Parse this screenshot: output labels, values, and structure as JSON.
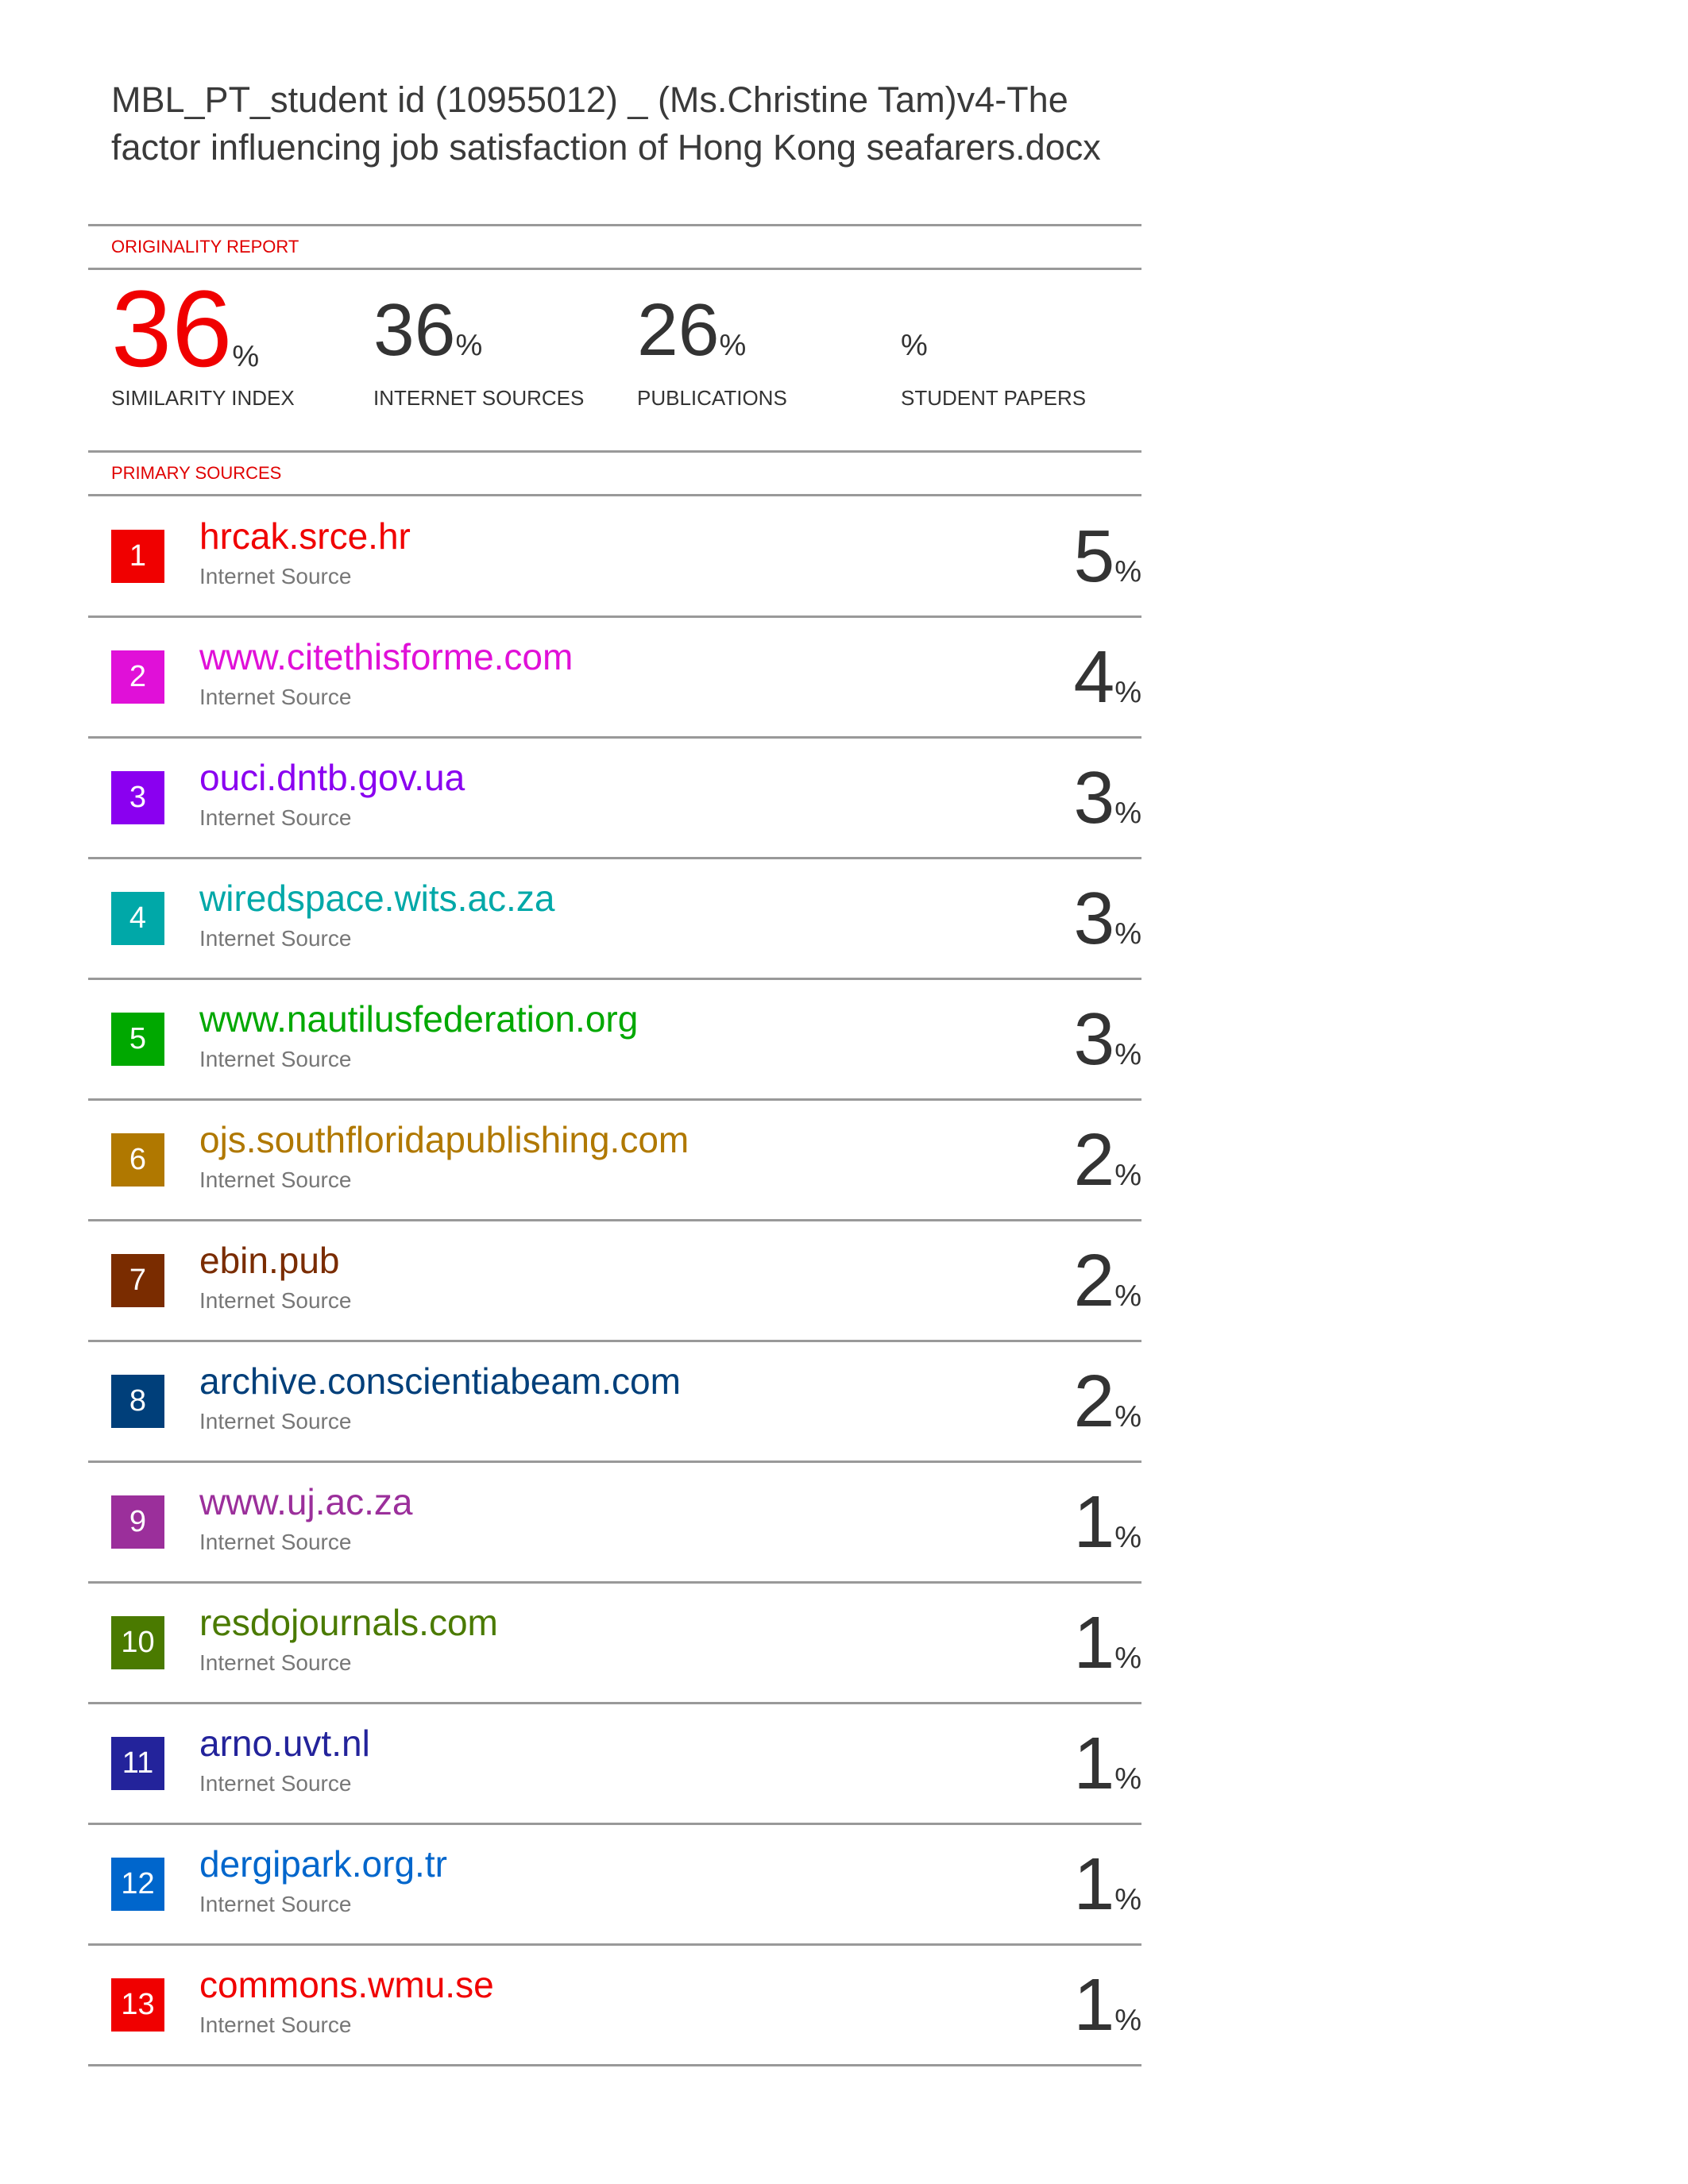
{
  "document": {
    "title": "MBL_PT_student id (10955012) _ (Ms.Christine Tam)v4-The factor influencing job satisfaction of Hong Kong seafarers.docx"
  },
  "originality_report": {
    "label": "ORIGINALITY REPORT",
    "accent_color": "#f00000",
    "stats": [
      {
        "value": "36",
        "unit": "%",
        "label": "SIMILARITY INDEX"
      },
      {
        "value": "36",
        "unit": "%",
        "label": "INTERNET SOURCES"
      },
      {
        "value": "26",
        "unit": "%",
        "label": "PUBLICATIONS"
      },
      {
        "value": "",
        "unit": "%",
        "label": "STUDENT PAPERS"
      }
    ]
  },
  "primary_sources": {
    "label": "PRIMARY SOURCES",
    "items": [
      {
        "rank": "1",
        "name": "hrcak.srce.hr",
        "type": "Internet Source",
        "percent": "5",
        "unit": "%",
        "color": "#f00000"
      },
      {
        "rank": "2",
        "name": "www.citethisforme.com",
        "type": "Internet Source",
        "percent": "4",
        "unit": "%",
        "color": "#e010d8"
      },
      {
        "rank": "3",
        "name": "ouci.dntb.gov.ua",
        "type": "Internet Source",
        "percent": "3",
        "unit": "%",
        "color": "#8a00f0"
      },
      {
        "rank": "4",
        "name": "wiredspace.wits.ac.za",
        "type": "Internet Source",
        "percent": "3",
        "unit": "%",
        "color": "#00a8a8"
      },
      {
        "rank": "5",
        "name": "www.nautilusfederation.org",
        "type": "Internet Source",
        "percent": "3",
        "unit": "%",
        "color": "#00a800"
      },
      {
        "rank": "6",
        "name": "ojs.southfloridapublishing.com",
        "type": "Internet Source",
        "percent": "2",
        "unit": "%",
        "color": "#b07800"
      },
      {
        "rank": "7",
        "name": "ebin.pub",
        "type": "Internet Source",
        "percent": "2",
        "unit": "%",
        "color": "#7a2c00"
      },
      {
        "rank": "8",
        "name": "archive.conscientiabeam.com",
        "type": "Internet Source",
        "percent": "2",
        "unit": "%",
        "color": "#003f7a"
      },
      {
        "rank": "9",
        "name": "www.uj.ac.za",
        "type": "Internet Source",
        "percent": "1",
        "unit": "%",
        "color": "#9b2f9b"
      },
      {
        "rank": "10",
        "name": "resdojournals.com",
        "type": "Internet Source",
        "percent": "1",
        "unit": "%",
        "color": "#4a7a00"
      },
      {
        "rank": "11",
        "name": "arno.uvt.nl",
        "type": "Internet Source",
        "percent": "1",
        "unit": "%",
        "color": "#23239b"
      },
      {
        "rank": "12",
        "name": "dergipark.org.tr",
        "type": "Internet Source",
        "percent": "1",
        "unit": "%",
        "color": "#0066cc"
      },
      {
        "rank": "13",
        "name": "commons.wmu.se",
        "type": "Internet Source",
        "percent": "1",
        "unit": "%",
        "color": "#f00000"
      }
    ]
  }
}
